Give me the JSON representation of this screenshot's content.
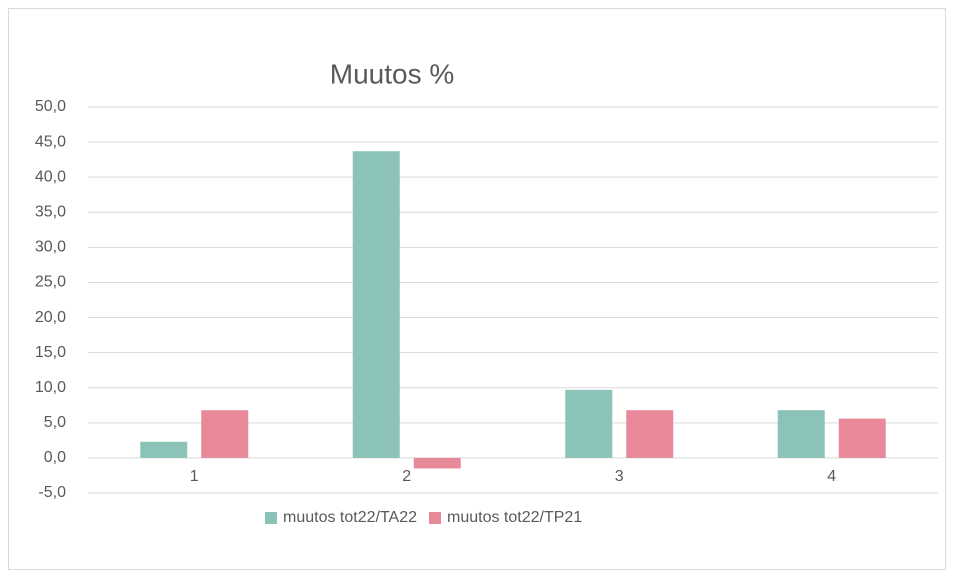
{
  "chart_data": {
    "type": "bar",
    "title": "Muutos %",
    "categories": [
      "1",
      "2",
      "3",
      "4"
    ],
    "series": [
      {
        "name": "muutos tot22/TA22",
        "color": "#8cc3b8",
        "values": [
          2.3,
          43.7,
          9.7,
          6.8
        ]
      },
      {
        "name": "muutos tot22/TP21",
        "color": "#e8899a",
        "values": [
          6.8,
          -1.5,
          6.8,
          5.6
        ]
      }
    ],
    "ylim": [
      -5,
      50
    ],
    "yticks": [
      {
        "value": -5,
        "label": "-5,0"
      },
      {
        "value": 0,
        "label": "0,0"
      },
      {
        "value": 5,
        "label": "5,0"
      },
      {
        "value": 10,
        "label": "10,0"
      },
      {
        "value": 15,
        "label": "15,0"
      },
      {
        "value": 20,
        "label": "20,0"
      },
      {
        "value": 25,
        "label": "25,0"
      },
      {
        "value": 30,
        "label": "30,0"
      },
      {
        "value": 35,
        "label": "35,0"
      },
      {
        "value": 40,
        "label": "40,0"
      },
      {
        "value": 45,
        "label": "45,0"
      },
      {
        "value": 50,
        "label": "50,0"
      }
    ],
    "grid": true,
    "legend": "bottom"
  }
}
